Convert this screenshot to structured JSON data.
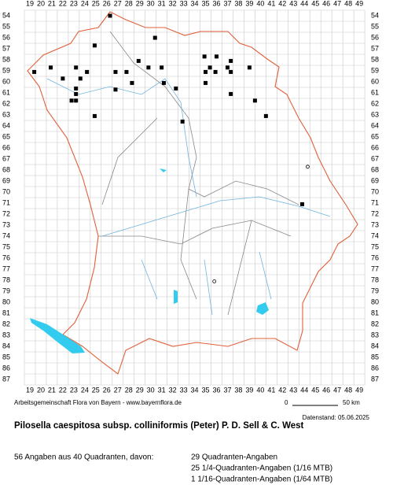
{
  "columns": [
    19,
    20,
    21,
    22,
    23,
    24,
    25,
    26,
    27,
    28,
    29,
    30,
    31,
    32,
    33,
    34,
    35,
    36,
    37,
    38,
    39,
    40,
    41,
    42,
    43,
    44,
    45,
    46,
    47,
    48,
    49
  ],
  "rows": [
    54,
    55,
    56,
    57,
    58,
    59,
    60,
    61,
    62,
    63,
    64,
    65,
    66,
    67,
    68,
    69,
    70,
    71,
    72,
    73,
    74,
    75,
    76,
    77,
    78,
    79,
    80,
    81,
    82,
    83,
    84,
    85,
    86,
    87
  ],
  "squares": [
    [
      26.3,
      54
    ],
    [
      30.4,
      56
    ],
    [
      24.9,
      56.7
    ],
    [
      34.9,
      57.7
    ],
    [
      36,
      57.7
    ],
    [
      37.3,
      58.1
    ],
    [
      28.9,
      58.1
    ],
    [
      19.4,
      59.1
    ],
    [
      20.9,
      58.7
    ],
    [
      23.2,
      58.7
    ],
    [
      24.2,
      59.1
    ],
    [
      26.8,
      59.1
    ],
    [
      27.8,
      59.1
    ],
    [
      29.8,
      58.7
    ],
    [
      31,
      58.7
    ],
    [
      35.4,
      58.7
    ],
    [
      37,
      58.7
    ],
    [
      39,
      58.7
    ],
    [
      35,
      59.1
    ],
    [
      35.9,
      59.1
    ],
    [
      37.3,
      59.1
    ],
    [
      22,
      59.7
    ],
    [
      23.6,
      59.7
    ],
    [
      28.3,
      60.1
    ],
    [
      31.2,
      60.1
    ],
    [
      35,
      60.1
    ],
    [
      23.2,
      60.6
    ],
    [
      26.8,
      60.7
    ],
    [
      32.3,
      60.6
    ],
    [
      23.2,
      61.1
    ],
    [
      37.3,
      61.1
    ],
    [
      22.8,
      61.7
    ],
    [
      23.2,
      61.7
    ],
    [
      39.5,
      61.7
    ],
    [
      24.9,
      63.1
    ],
    [
      32.9,
      63.6
    ],
    [
      40.5,
      63.1
    ],
    [
      43.8,
      71.1
    ]
  ],
  "circles": [
    [
      44.3,
      67.7
    ],
    [
      35.8,
      78.1
    ]
  ],
  "credit": "Arbeitsgemeinschaft Flora von Bayern - www.bayernflora.de",
  "scale_start": "0",
  "scale_end": "50 km",
  "date": "Datenstand: 05.06.2025",
  "title": "Pilosella caespitosa subsp. colliniformis (Peter) P. D. Sell & C. West",
  "summary": "56 Angaben aus 40 Quadranten, davon:",
  "details": [
    "29 Quadranten-Angaben",
    "25 1/4-Quadranten-Angaben (1/16 MTB)",
    "1 1/16-Quadranten-Angaben (1/64 MTB)"
  ]
}
